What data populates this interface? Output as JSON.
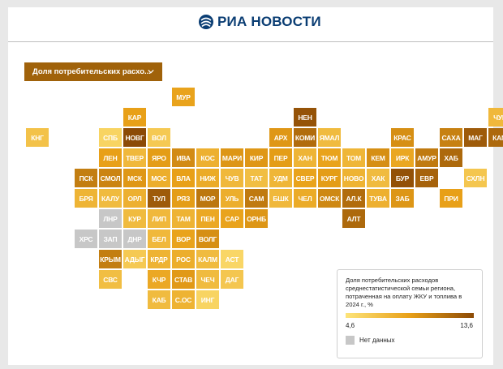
{
  "header": {
    "brand": "РИА НОВОСТИ"
  },
  "dropdown": {
    "label": "Доля потребительских расхо..."
  },
  "legend": {
    "title": "Доля потребительских расходов среднестатистической семьи региона, потраченная на оплату ЖКУ и топлива в 2024 г., %",
    "min": "4,6",
    "max": "13,6",
    "no_data": "Нет данных"
  },
  "colors": {
    "scale_low": "#fde47a",
    "scale_high": "#8c4a06",
    "no_data": "#c7c7c7",
    "brand": "#0a3d73"
  },
  "tiles": [
    {
      "label": "МУР",
      "col": 6,
      "row": 0,
      "level": 0.48
    },
    {
      "label": "КАР",
      "col": 4,
      "row": 1,
      "level": 0.5
    },
    {
      "label": "НЕН",
      "col": 11,
      "row": 1,
      "level": 0.95
    },
    {
      "label": "ЧУК",
      "col": 19,
      "row": 1,
      "level": 0.32
    },
    {
      "label": "КНГ",
      "col": 0,
      "row": 2,
      "level": 0.25
    },
    {
      "label": "СПБ",
      "col": 3,
      "row": 2,
      "level": 0.12
    },
    {
      "label": "НОВГ",
      "col": 4,
      "row": 2,
      "level": 1.0
    },
    {
      "label": "ВОЛ",
      "col": 5,
      "row": 2,
      "level": 0.2
    },
    {
      "label": "АРХ",
      "col": 10,
      "row": 2,
      "level": 0.55
    },
    {
      "label": "КОМИ",
      "col": 11,
      "row": 2,
      "level": 0.8
    },
    {
      "label": "ЯМАЛ",
      "col": 12,
      "row": 2,
      "level": 0.3
    },
    {
      "label": "КРАС",
      "col": 15,
      "row": 2,
      "level": 0.6
    },
    {
      "label": "САХА",
      "col": 17,
      "row": 2,
      "level": 0.68
    },
    {
      "label": "МАГ",
      "col": 18,
      "row": 2,
      "level": 0.9
    },
    {
      "label": "КАМ",
      "col": 19,
      "row": 2,
      "level": 0.82
    },
    {
      "label": "ЛЕН",
      "col": 3,
      "row": 3,
      "level": 0.5
    },
    {
      "label": "ТВЕР",
      "col": 4,
      "row": 3,
      "level": 0.32
    },
    {
      "label": "ЯРО",
      "col": 5,
      "row": 3,
      "level": 0.52
    },
    {
      "label": "ИВА",
      "col": 6,
      "row": 3,
      "level": 0.62
    },
    {
      "label": "КОС",
      "col": 7,
      "row": 3,
      "level": 0.38
    },
    {
      "label": "МАРИ",
      "col": 8,
      "row": 3,
      "level": 0.56
    },
    {
      "label": "КИР",
      "col": 9,
      "row": 3,
      "level": 0.55
    },
    {
      "label": "ПЕР",
      "col": 10,
      "row": 3,
      "level": 0.52
    },
    {
      "label": "ХАН",
      "col": 11,
      "row": 3,
      "level": 0.35
    },
    {
      "label": "ТЮМ",
      "col": 12,
      "row": 3,
      "level": 0.48
    },
    {
      "label": "ТОМ",
      "col": 13,
      "row": 3,
      "level": 0.34
    },
    {
      "label": "КЕМ",
      "col": 14,
      "row": 3,
      "level": 0.6
    },
    {
      "label": "ИРК",
      "col": 15,
      "row": 3,
      "level": 0.45
    },
    {
      "label": "АМУР",
      "col": 16,
      "row": 3,
      "level": 0.72
    },
    {
      "label": "ХАБ",
      "col": 17,
      "row": 3,
      "level": 0.82
    },
    {
      "label": "ПСК",
      "col": 2,
      "row": 4,
      "level": 0.7
    },
    {
      "label": "СМОЛ",
      "col": 3,
      "row": 4,
      "level": 0.66
    },
    {
      "label": "МСК",
      "col": 4,
      "row": 4,
      "level": 0.55
    },
    {
      "label": "МОС",
      "col": 5,
      "row": 4,
      "level": 0.4
    },
    {
      "label": "ВЛА",
      "col": 6,
      "row": 4,
      "level": 0.5
    },
    {
      "label": "НИЖ",
      "col": 7,
      "row": 4,
      "level": 0.42
    },
    {
      "label": "ЧУВ",
      "col": 8,
      "row": 4,
      "level": 0.32
    },
    {
      "label": "ТАТ",
      "col": 9,
      "row": 4,
      "level": 0.28
    },
    {
      "label": "УДМ",
      "col": 10,
      "row": 4,
      "level": 0.34
    },
    {
      "label": "СВЕР",
      "col": 11,
      "row": 4,
      "level": 0.48
    },
    {
      "label": "КУРГ",
      "col": 12,
      "row": 4,
      "level": 0.52
    },
    {
      "label": "НОВО",
      "col": 13,
      "row": 4,
      "level": 0.36
    },
    {
      "label": "ХАК",
      "col": 14,
      "row": 4,
      "level": 0.3
    },
    {
      "label": "БУР",
      "col": 15,
      "row": 4,
      "level": 0.96
    },
    {
      "label": "ЕВР",
      "col": 16,
      "row": 4,
      "level": 0.86
    },
    {
      "label": "СХЛН",
      "col": 18,
      "row": 4,
      "level": 0.22
    },
    {
      "label": "БРЯ",
      "col": 2,
      "row": 5,
      "level": 0.35
    },
    {
      "label": "КАЛУ",
      "col": 3,
      "row": 5,
      "level": 0.3
    },
    {
      "label": "ОРЛ",
      "col": 4,
      "row": 5,
      "level": 0.38
    },
    {
      "label": "ТУЛ",
      "col": 5,
      "row": 5,
      "level": 0.9
    },
    {
      "label": "РЯЗ",
      "col": 6,
      "row": 5,
      "level": 0.52
    },
    {
      "label": "МОР",
      "col": 7,
      "row": 5,
      "level": 0.74
    },
    {
      "label": "УЛЬ",
      "col": 8,
      "row": 5,
      "level": 0.4
    },
    {
      "label": "САМ",
      "col": 9,
      "row": 5,
      "level": 0.72
    },
    {
      "label": "БШК",
      "col": 10,
      "row": 5,
      "level": 0.32
    },
    {
      "label": "ЧЕЛ",
      "col": 11,
      "row": 5,
      "level": 0.42
    },
    {
      "label": "ОМСК",
      "col": 12,
      "row": 5,
      "level": 0.64
    },
    {
      "label": "АЛ.К",
      "col": 13,
      "row": 5,
      "level": 0.8
    },
    {
      "label": "ТУВА",
      "col": 14,
      "row": 5,
      "level": 0.38
    },
    {
      "label": "ЗАБ",
      "col": 15,
      "row": 5,
      "level": 0.56
    },
    {
      "label": "ПРИ",
      "col": 17,
      "row": 5,
      "level": 0.5
    },
    {
      "label": "ЛНР",
      "col": 3,
      "row": 6,
      "level": -1
    },
    {
      "label": "КУР",
      "col": 4,
      "row": 6,
      "level": 0.3
    },
    {
      "label": "ЛИП",
      "col": 5,
      "row": 6,
      "level": 0.32
    },
    {
      "label": "ТАМ",
      "col": 6,
      "row": 6,
      "level": 0.36
    },
    {
      "label": "ПЕН",
      "col": 7,
      "row": 6,
      "level": 0.44
    },
    {
      "label": "САР",
      "col": 8,
      "row": 6,
      "level": 0.48
    },
    {
      "label": "ОРНБ",
      "col": 9,
      "row": 6,
      "level": 0.56
    },
    {
      "label": "АЛТ",
      "col": 13,
      "row": 6,
      "level": 0.82
    },
    {
      "label": "ХРС",
      "col": 2,
      "row": 7,
      "level": -1
    },
    {
      "label": "ЗАП",
      "col": 3,
      "row": 7,
      "level": -1
    },
    {
      "label": "ДНР",
      "col": 4,
      "row": 7,
      "level": -1
    },
    {
      "label": "БЕЛ",
      "col": 5,
      "row": 7,
      "level": 0.32
    },
    {
      "label": "ВОР",
      "col": 6,
      "row": 7,
      "level": 0.48
    },
    {
      "label": "ВОЛГ",
      "col": 7,
      "row": 7,
      "level": 0.6
    },
    {
      "label": "КРЫМ",
      "col": 3,
      "row": 8,
      "level": 0.7
    },
    {
      "label": "АДЫГ",
      "col": 4,
      "row": 8,
      "level": 0.2
    },
    {
      "label": "КРДР",
      "col": 5,
      "row": 8,
      "level": 0.36
    },
    {
      "label": "РОС",
      "col": 6,
      "row": 8,
      "level": 0.4
    },
    {
      "label": "КАЛМ",
      "col": 7,
      "row": 8,
      "level": 0.3
    },
    {
      "label": "АСТ",
      "col": 8,
      "row": 8,
      "level": 0.1
    },
    {
      "label": "СВС",
      "col": 3,
      "row": 9,
      "level": 0.28
    },
    {
      "label": "КЧР",
      "col": 5,
      "row": 9,
      "level": 0.44
    },
    {
      "label": "СТАВ",
      "col": 6,
      "row": 9,
      "level": 0.54
    },
    {
      "label": "ЧЕЧ",
      "col": 7,
      "row": 9,
      "level": 0.3
    },
    {
      "label": "ДАГ",
      "col": 8,
      "row": 9,
      "level": 0.22
    },
    {
      "label": "КАБ",
      "col": 5,
      "row": 10,
      "level": 0.3
    },
    {
      "label": "С.ОС",
      "col": 6,
      "row": 10,
      "level": 0.36
    },
    {
      "label": "ИНГ",
      "col": 7,
      "row": 10,
      "level": 0.12
    }
  ]
}
